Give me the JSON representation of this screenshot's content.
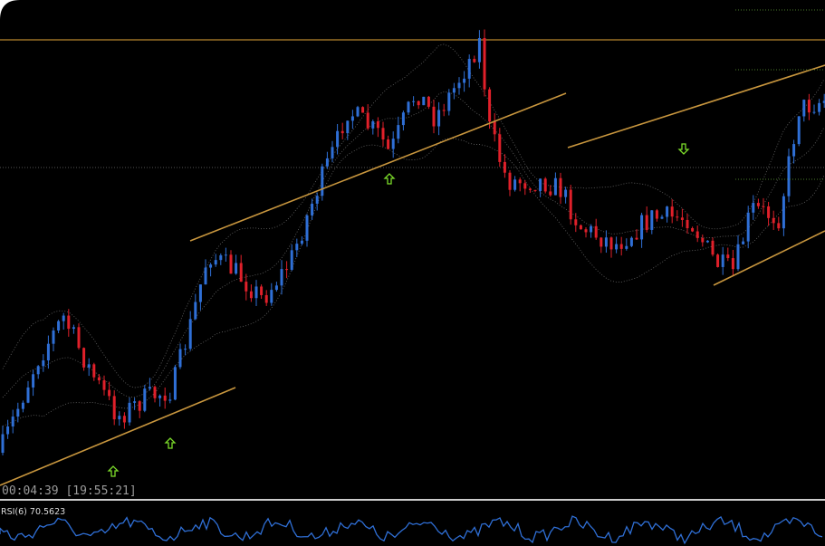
{
  "screen": {
    "timer": "00:04:39 [19:55:21]",
    "indicator": "RSI(6) 70.5623"
  }
}
